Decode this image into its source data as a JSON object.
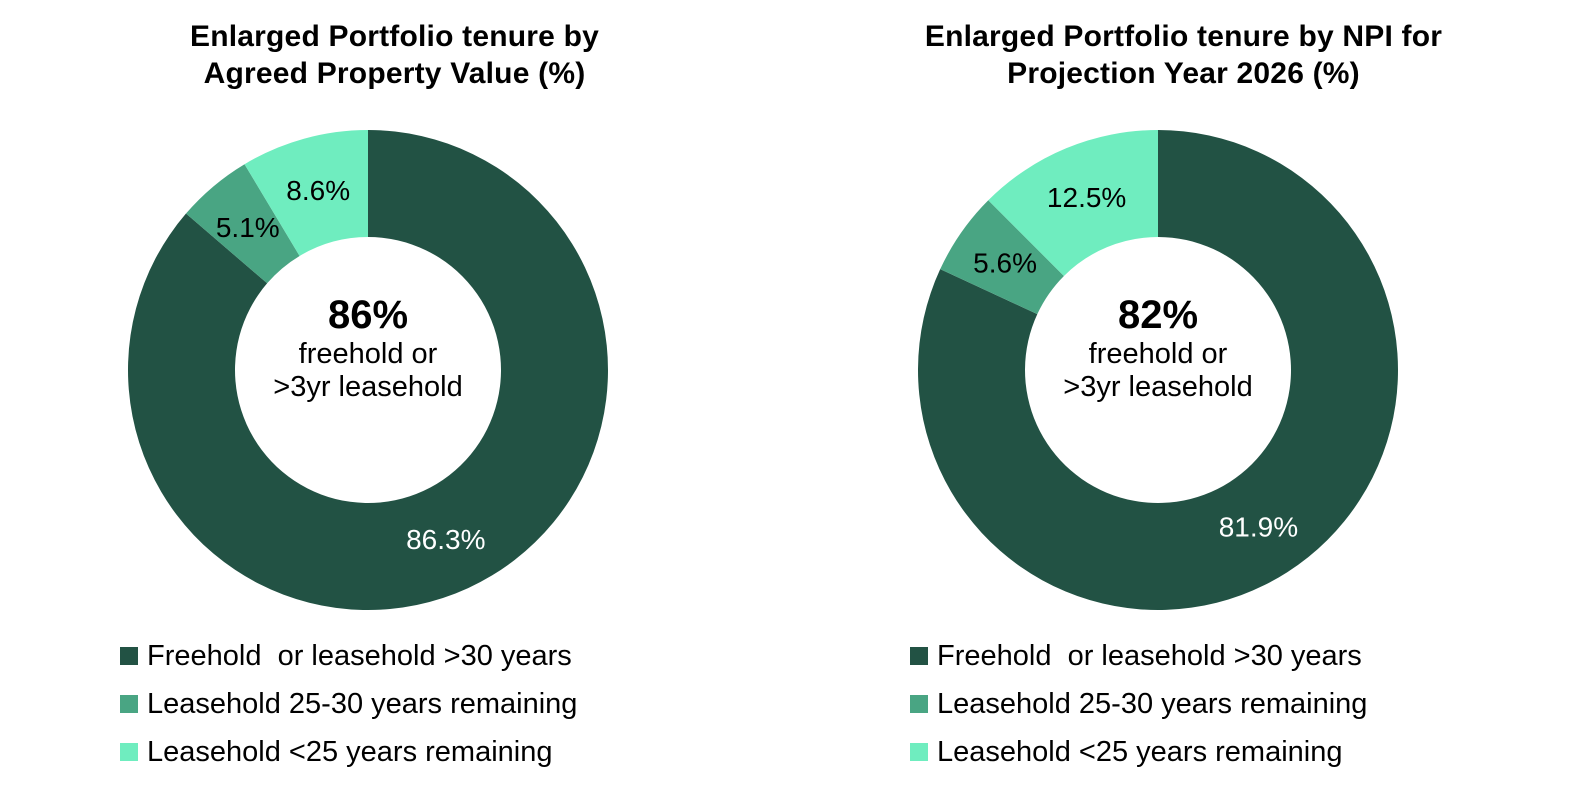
{
  "colors": {
    "freehold": "#225244",
    "lease_25_30": "#49A583",
    "lease_lt25": "#6FEDBF"
  },
  "chart_data": [
    {
      "type": "pie",
      "title_lines": [
        "Enlarged Portfolio tenure by",
        "Agreed  Property Value (%)"
      ],
      "center_value": "86%",
      "center_lines": [
        "freehold or",
        ">3yr leasehold"
      ],
      "slices": [
        {
          "label": "Freehold  or leasehold >30 years",
          "value": 86.3,
          "value_label": "86.3%",
          "color": "#225244",
          "text_color": "#ffffff"
        },
        {
          "label": "Leasehold 25-30 years remaining",
          "value": 5.1,
          "value_label": "5.1%",
          "color": "#49A583",
          "text_color": "#000000"
        },
        {
          "label": "Leasehold <25 years remaining",
          "value": 8.6,
          "value_label": "8.6%",
          "color": "#6FEDBF",
          "text_color": "#000000"
        }
      ],
      "legend": [
        "Freehold  or leasehold >30 years",
        "Leasehold 25-30 years remaining",
        "Leasehold <25 years remaining"
      ],
      "legend_position": "bottom"
    },
    {
      "type": "pie",
      "title_lines": [
        "Enlarged Portfolio tenure by NPI for",
        "Projection Year 2026 (%)"
      ],
      "center_value": "82%",
      "center_lines": [
        "freehold or",
        ">3yr leasehold"
      ],
      "slices": [
        {
          "label": "Freehold  or leasehold >30 years",
          "value": 81.9,
          "value_label": "81.9%",
          "color": "#225244",
          "text_color": "#ffffff"
        },
        {
          "label": "Leasehold 25-30 years remaining",
          "value": 5.6,
          "value_label": "5.6%",
          "color": "#49A583",
          "text_color": "#000000"
        },
        {
          "label": "Leasehold <25 years remaining",
          "value": 12.5,
          "value_label": "12.5%",
          "color": "#6FEDBF",
          "text_color": "#000000"
        }
      ],
      "legend": [
        "Freehold  or leasehold >30 years",
        "Leasehold 25-30 years remaining",
        "Leasehold <25 years remaining"
      ],
      "legend_position": "bottom"
    }
  ]
}
